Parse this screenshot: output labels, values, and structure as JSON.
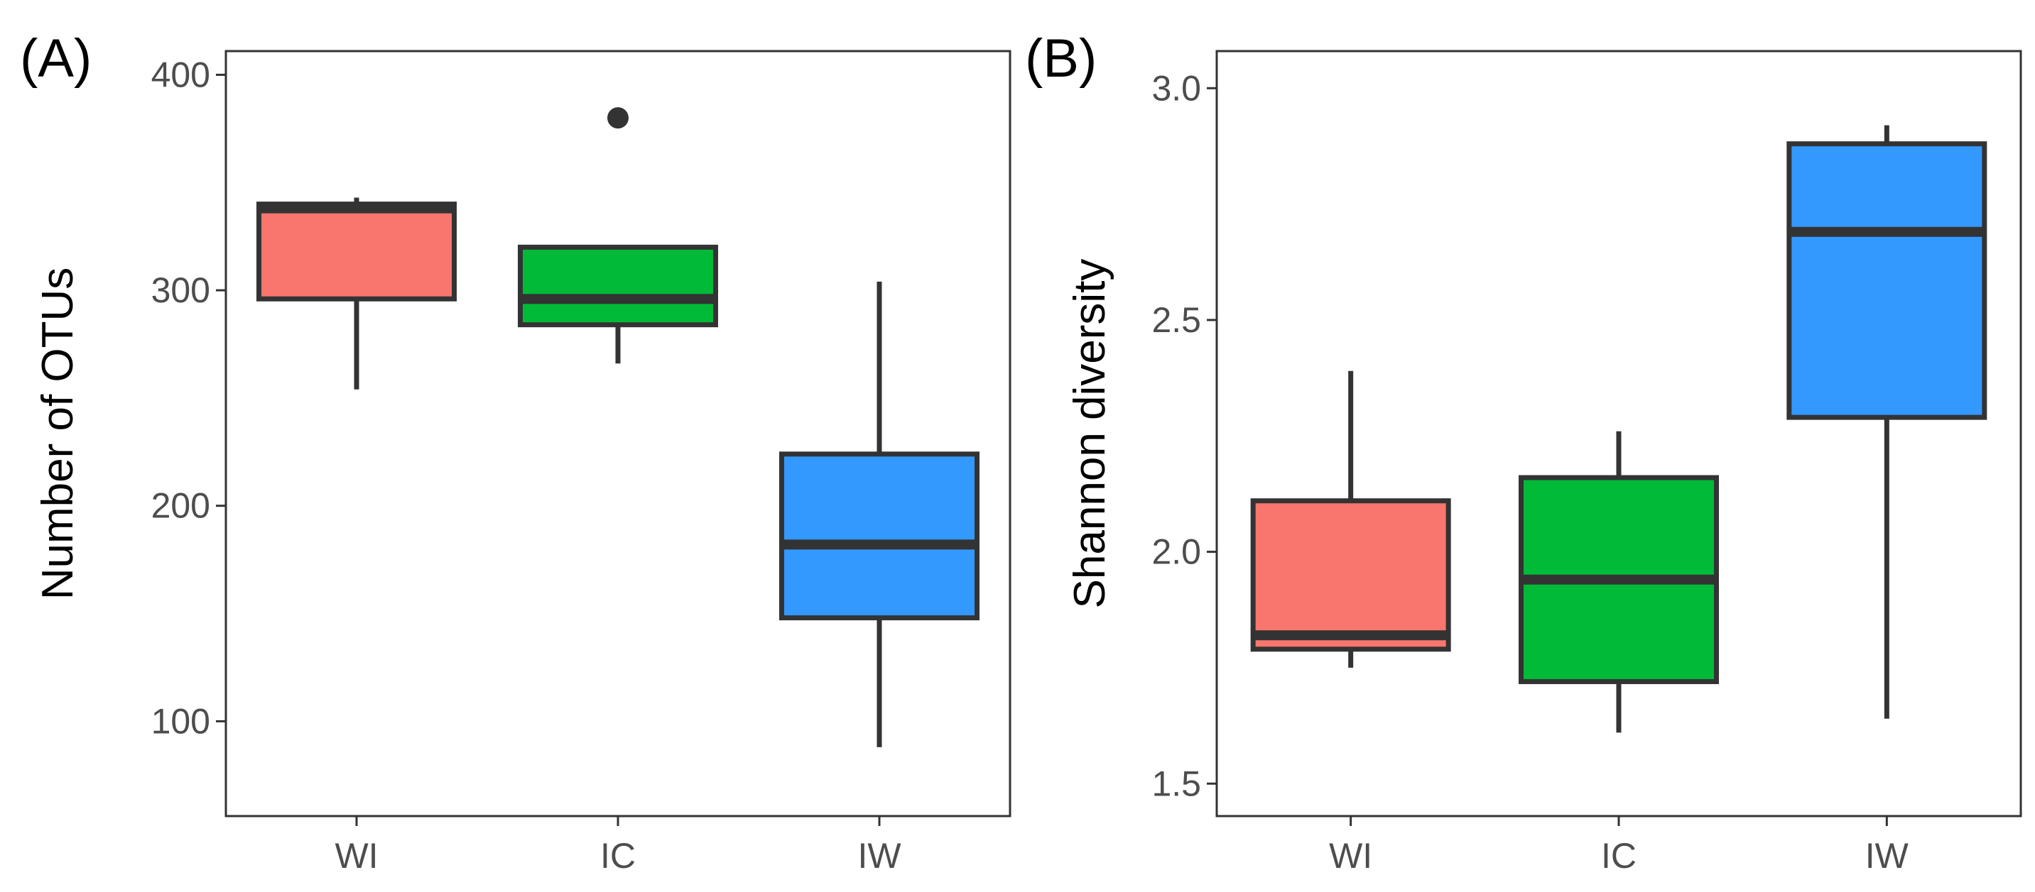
{
  "chart_data": [
    {
      "type": "box",
      "panel_label": "(A)",
      "ylabel": "Number of OTUs",
      "xlabel": "",
      "categories": [
        "WI",
        "IC",
        "IW"
      ],
      "ylim": [
        56,
        411
      ],
      "yticks": [
        100,
        200,
        300,
        400
      ],
      "grid": false,
      "legend": "none",
      "boxes": [
        {
          "group": "WI",
          "color": "#F8766D",
          "whisker_low": 254,
          "q1": 296,
          "median": 338,
          "q3": 340,
          "whisker_high": 343,
          "outliers": []
        },
        {
          "group": "IC",
          "color": "#00BA38",
          "whisker_low": 266,
          "q1": 284,
          "median": 296,
          "q3": 320,
          "whisker_high": 320,
          "outliers": [
            380
          ]
        },
        {
          "group": "IW",
          "color": "#3399FF",
          "whisker_low": 88,
          "q1": 148,
          "median": 182,
          "q3": 224,
          "whisker_high": 304,
          "outliers": []
        }
      ]
    },
    {
      "type": "box",
      "panel_label": "(B)",
      "ylabel": "Shannon diversity",
      "xlabel": "",
      "categories": [
        "WI",
        "IC",
        "IW"
      ],
      "ylim": [
        1.43,
        3.08
      ],
      "yticks": [
        1.5,
        2.0,
        2.5,
        3.0
      ],
      "grid": false,
      "legend": "none",
      "boxes": [
        {
          "group": "WI",
          "color": "#F8766D",
          "whisker_low": 1.75,
          "q1": 1.79,
          "median": 1.82,
          "q3": 2.11,
          "whisker_high": 2.39,
          "outliers": []
        },
        {
          "group": "IC",
          "color": "#00BA38",
          "whisker_low": 1.61,
          "q1": 1.72,
          "median": 1.94,
          "q3": 2.16,
          "whisker_high": 2.26,
          "outliers": []
        },
        {
          "group": "IW",
          "color": "#3399FF",
          "whisker_low": 1.64,
          "q1": 2.29,
          "median": 2.69,
          "q3": 2.88,
          "whisker_high": 2.92,
          "outliers": []
        }
      ]
    }
  ]
}
